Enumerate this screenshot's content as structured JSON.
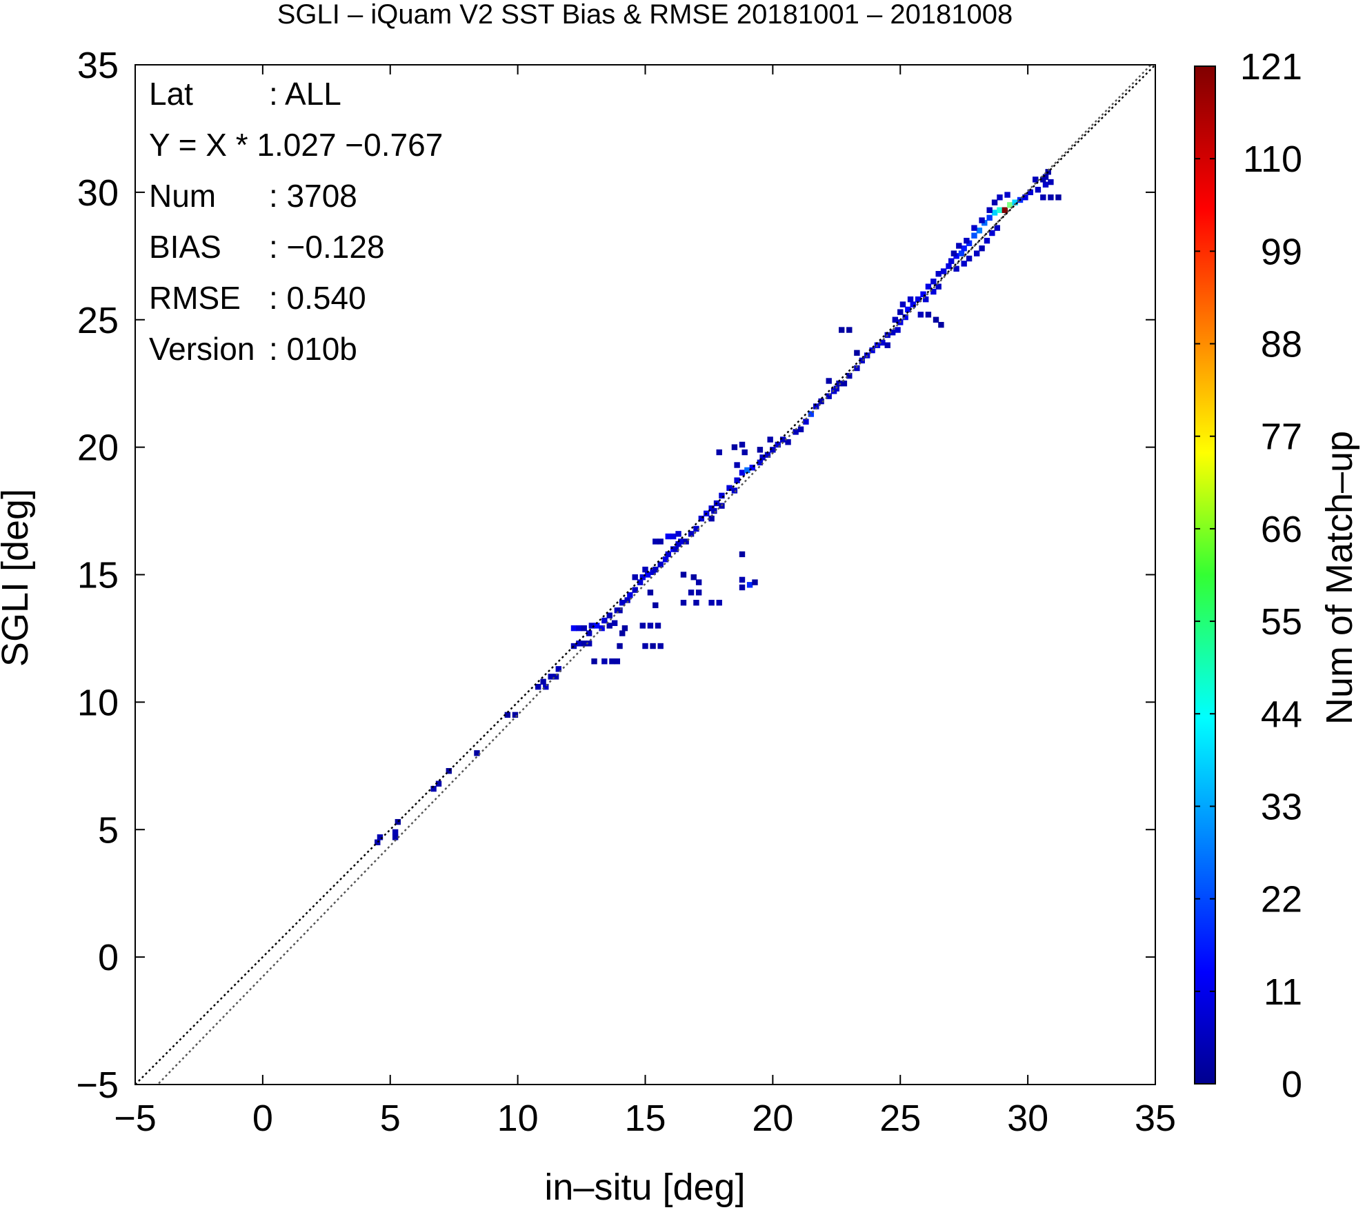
{
  "chart_data": {
    "type": "heatmap",
    "title": "SGLI – iQuam V2 SST Bias & RMSE 20181001 – 20181008",
    "xlabel": "in–situ [deg]",
    "ylabel": "SGLI [deg]",
    "xlim": [
      -5,
      35
    ],
    "ylim": [
      -5,
      35
    ],
    "xticks": [
      "−5",
      "0",
      "5",
      "10",
      "15",
      "20",
      "25",
      "30",
      "35"
    ],
    "yticks": [
      "−5",
      "0",
      "5",
      "10",
      "15",
      "20",
      "25",
      "30",
      "35"
    ],
    "colorbar": {
      "label": "Num of Match–up",
      "ticks": [
        "0",
        "11",
        "22",
        "33",
        "44",
        "55",
        "66",
        "77",
        "88",
        "99",
        "110",
        "121"
      ],
      "min": 0,
      "max": 121,
      "colormap": "jet"
    },
    "stats": [
      {
        "key": "Lat",
        "sep": ":",
        "value": "ALL"
      },
      {
        "key": "Y = X * 1.027 −0.767",
        "sep": "",
        "value": ""
      },
      {
        "key": "Num",
        "sep": ":",
        "value": "3708"
      },
      {
        "key": "BIAS",
        "sep": ":",
        "value": "−0.128"
      },
      {
        "key": "RMSE",
        "sep": ":",
        "value": "0.540"
      },
      {
        "key": "Version",
        "sep": ":",
        "value": "010b"
      }
    ],
    "lines": [
      {
        "kind": "identity",
        "slope": 1,
        "intercept": 0,
        "style": "dotted",
        "color": "#000000"
      },
      {
        "kind": "regression",
        "slope": 1.027,
        "intercept": -0.767,
        "style": "dotted",
        "color": "#555555"
      }
    ],
    "cells": [
      [
        4.5,
        4.5,
        5
      ],
      [
        4.6,
        4.7,
        6
      ],
      [
        5.2,
        4.7,
        5
      ],
      [
        5.2,
        4.9,
        6
      ],
      [
        5.3,
        5.3,
        3
      ],
      [
        6.7,
        6.6,
        6
      ],
      [
        6.9,
        6.8,
        5
      ],
      [
        7.3,
        7.3,
        3
      ],
      [
        8.4,
        8.0,
        4
      ],
      [
        9.6,
        9.5,
        4
      ],
      [
        9.9,
        9.5,
        4
      ],
      [
        10.8,
        10.6,
        6
      ],
      [
        11.0,
        10.8,
        5
      ],
      [
        11.1,
        10.6,
        8
      ],
      [
        11.3,
        11.0,
        6
      ],
      [
        11.5,
        11.0,
        6
      ],
      [
        11.6,
        11.3,
        7
      ],
      [
        12.2,
        12.2,
        6
      ],
      [
        12.4,
        12.3,
        8
      ],
      [
        12.6,
        12.3,
        5
      ],
      [
        12.8,
        12.3,
        6
      ],
      [
        12.8,
        12.7,
        7
      ],
      [
        12.2,
        12.9,
        14
      ],
      [
        12.4,
        12.9,
        10
      ],
      [
        12.6,
        12.9,
        6
      ],
      [
        12.9,
        13.0,
        8
      ],
      [
        13.1,
        13.0,
        16
      ],
      [
        13.4,
        13.2,
        10
      ],
      [
        13.6,
        13.4,
        6
      ],
      [
        13.3,
        12.9,
        12
      ],
      [
        13.6,
        13.0,
        5
      ],
      [
        13.8,
        13.1,
        6
      ],
      [
        13.9,
        13.6,
        7
      ],
      [
        14.1,
        13.9,
        9
      ],
      [
        14.3,
        14.0,
        8
      ],
      [
        14.4,
        14.2,
        12
      ],
      [
        14.0,
        13.6,
        5
      ],
      [
        14.6,
        14.4,
        8
      ],
      [
        14.8,
        14.7,
        10
      ],
      [
        14.6,
        14.9,
        6
      ],
      [
        14.9,
        14.9,
        12
      ],
      [
        15.1,
        15.0,
        14
      ],
      [
        15.3,
        15.1,
        10
      ],
      [
        15.4,
        15.2,
        8
      ],
      [
        15.0,
        15.2,
        7
      ],
      [
        15.6,
        15.4,
        9
      ],
      [
        15.8,
        15.6,
        12
      ],
      [
        15.9,
        15.8,
        10
      ],
      [
        16.1,
        16.0,
        14
      ],
      [
        16.2,
        16.0,
        8
      ],
      [
        16.3,
        16.2,
        9
      ],
      [
        16.4,
        16.3,
        11
      ],
      [
        15.9,
        16.5,
        14
      ],
      [
        16.1,
        16.5,
        12
      ],
      [
        16.3,
        16.6,
        10
      ],
      [
        15.4,
        16.3,
        6
      ],
      [
        15.6,
        16.3,
        5
      ],
      [
        16.6,
        16.3,
        6
      ],
      [
        16.8,
        16.6,
        8
      ],
      [
        17.0,
        16.8,
        9
      ],
      [
        17.2,
        17.2,
        10
      ],
      [
        17.4,
        17.4,
        12
      ],
      [
        17.6,
        17.6,
        11
      ],
      [
        17.8,
        17.8,
        9
      ],
      [
        17.7,
        17.5,
        7
      ],
      [
        18.0,
        17.7,
        6
      ],
      [
        17.6,
        17.2,
        5
      ],
      [
        18.0,
        18.1,
        10
      ],
      [
        18.3,
        18.4,
        11
      ],
      [
        18.5,
        18.3,
        9
      ],
      [
        18.6,
        18.7,
        10
      ],
      [
        18.8,
        19.0,
        12
      ],
      [
        19.0,
        19.1,
        28
      ],
      [
        19.2,
        19.2,
        14
      ],
      [
        19.5,
        19.4,
        10
      ],
      [
        19.6,
        19.6,
        8
      ],
      [
        18.6,
        19.3,
        6
      ],
      [
        18.9,
        19.8,
        5
      ],
      [
        17.9,
        19.8,
        5
      ],
      [
        18.5,
        20.0,
        4
      ],
      [
        18.8,
        20.1,
        5
      ],
      [
        19.8,
        19.7,
        9
      ],
      [
        20.0,
        19.9,
        8
      ],
      [
        20.2,
        20.1,
        10
      ],
      [
        20.4,
        20.3,
        8
      ],
      [
        20.6,
        20.2,
        6
      ],
      [
        20.9,
        20.6,
        7
      ],
      [
        19.5,
        19.9,
        4
      ],
      [
        19.9,
        20.3,
        5
      ],
      [
        21.1,
        20.7,
        6
      ],
      [
        21.3,
        21.0,
        10
      ],
      [
        21.5,
        21.3,
        22
      ],
      [
        21.7,
        21.6,
        9
      ],
      [
        21.9,
        21.8,
        6
      ],
      [
        22.2,
        22.0,
        8
      ],
      [
        22.4,
        22.2,
        10
      ],
      [
        22.5,
        22.3,
        8
      ],
      [
        22.6,
        22.5,
        6
      ],
      [
        22.2,
        22.6,
        5
      ],
      [
        22.8,
        22.5,
        5
      ],
      [
        23.0,
        22.8,
        6
      ],
      [
        23.3,
        23.1,
        8
      ],
      [
        23.5,
        23.4,
        9
      ],
      [
        23.7,
        23.6,
        10
      ],
      [
        23.9,
        23.8,
        11
      ],
      [
        24.1,
        24.0,
        12
      ],
      [
        24.3,
        24.1,
        10
      ],
      [
        24.5,
        24.4,
        9
      ],
      [
        24.7,
        24.5,
        8
      ],
      [
        23.3,
        23.7,
        4
      ],
      [
        22.7,
        24.6,
        4
      ],
      [
        23.0,
        24.6,
        4
      ],
      [
        24.5,
        24.0,
        6
      ],
      [
        24.9,
        24.6,
        9
      ],
      [
        25.0,
        24.9,
        12
      ],
      [
        25.2,
        25.1,
        14
      ],
      [
        25.3,
        25.4,
        16
      ],
      [
        25.5,
        25.6,
        13
      ],
      [
        25.7,
        25.8,
        12
      ],
      [
        25.9,
        26.0,
        14
      ],
      [
        26.1,
        26.3,
        12
      ],
      [
        26.3,
        26.5,
        10
      ],
      [
        26.5,
        26.8,
        9
      ],
      [
        25.1,
        25.6,
        8
      ],
      [
        25.4,
        25.8,
        9
      ],
      [
        24.8,
        25.0,
        7
      ],
      [
        25.0,
        25.3,
        6
      ],
      [
        25.8,
        25.2,
        7
      ],
      [
        26.1,
        25.2,
        5
      ],
      [
        26.4,
        25.0,
        4
      ],
      [
        26.6,
        24.8,
        4
      ],
      [
        26.0,
        25.8,
        10
      ],
      [
        26.3,
        26.1,
        11
      ],
      [
        26.5,
        26.3,
        8
      ],
      [
        26.7,
        26.9,
        11
      ],
      [
        26.9,
        27.1,
        12
      ],
      [
        27.0,
        27.3,
        10
      ],
      [
        27.2,
        27.5,
        14
      ],
      [
        27.4,
        27.6,
        22
      ],
      [
        27.5,
        27.8,
        18
      ],
      [
        27.7,
        28.0,
        20
      ],
      [
        27.9,
        28.3,
        25
      ],
      [
        28.1,
        28.5,
        30
      ],
      [
        28.3,
        28.8,
        28
      ],
      [
        28.5,
        29.0,
        22
      ],
      [
        28.7,
        29.2,
        40
      ],
      [
        28.9,
        29.3,
        50
      ],
      [
        29.1,
        29.3,
        121
      ],
      [
        29.3,
        29.5,
        60
      ],
      [
        29.5,
        29.6,
        40
      ],
      [
        29.7,
        29.7,
        20
      ],
      [
        29.9,
        29.8,
        12
      ],
      [
        30.1,
        30.0,
        10
      ],
      [
        30.4,
        30.1,
        8
      ],
      [
        30.7,
        30.3,
        9
      ],
      [
        30.9,
        30.4,
        7
      ],
      [
        30.6,
        29.8,
        6
      ],
      [
        30.9,
        29.8,
        5
      ],
      [
        31.2,
        29.8,
        4
      ],
      [
        27.2,
        27.0,
        8
      ],
      [
        27.5,
        27.2,
        9
      ],
      [
        27.7,
        27.4,
        7
      ],
      [
        28.0,
        27.6,
        8
      ],
      [
        28.2,
        27.8,
        6
      ],
      [
        28.4,
        28.1,
        9
      ],
      [
        28.6,
        28.4,
        10
      ],
      [
        28.8,
        28.6,
        8
      ],
      [
        27.1,
        27.6,
        6
      ],
      [
        27.3,
        27.9,
        7
      ],
      [
        27.6,
        28.1,
        8
      ],
      [
        27.9,
        28.6,
        9
      ],
      [
        28.2,
        28.9,
        8
      ],
      [
        28.5,
        29.3,
        7
      ],
      [
        28.7,
        29.6,
        6
      ],
      [
        28.9,
        29.8,
        8
      ],
      [
        29.2,
        29.9,
        9
      ],
      [
        30.3,
        30.5,
        7
      ],
      [
        30.6,
        30.5,
        5
      ],
      [
        30.7,
        30.6,
        6
      ],
      [
        30.8,
        30.8,
        4
      ],
      [
        16.5,
        15.0,
        4
      ],
      [
        16.9,
        14.9,
        4
      ],
      [
        17.1,
        14.7,
        5
      ],
      [
        16.8,
        14.3,
        5
      ],
      [
        17.1,
        14.3,
        5
      ],
      [
        17.6,
        13.9,
        6
      ],
      [
        17.9,
        13.9,
        6
      ],
      [
        16.5,
        13.9,
        5
      ],
      [
        17.0,
        13.9,
        5
      ],
      [
        15.2,
        14.3,
        4
      ],
      [
        15.4,
        13.8,
        4
      ],
      [
        13.0,
        11.6,
        4
      ],
      [
        13.4,
        11.6,
        6
      ],
      [
        13.7,
        11.6,
        5
      ],
      [
        13.9,
        11.6,
        5
      ],
      [
        14.0,
        12.2,
        4
      ],
      [
        14.1,
        12.7,
        4
      ],
      [
        14.2,
        12.9,
        4
      ],
      [
        14.9,
        13.0,
        5
      ],
      [
        15.2,
        13.0,
        6
      ],
      [
        15.5,
        13.0,
        5
      ],
      [
        15.0,
        12.2,
        5
      ],
      [
        15.3,
        12.2,
        4
      ],
      [
        15.6,
        12.2,
        5
      ],
      [
        18.8,
        15.8,
        4
      ],
      [
        18.8,
        14.8,
        6
      ],
      [
        18.8,
        14.5,
        5
      ],
      [
        19.1,
        14.6,
        20
      ],
      [
        19.3,
        14.7,
        4
      ]
    ]
  }
}
